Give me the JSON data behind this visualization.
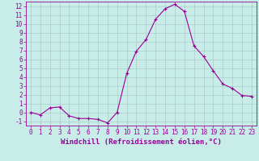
{
  "x": [
    0,
    1,
    2,
    3,
    4,
    5,
    6,
    7,
    8,
    9,
    10,
    11,
    12,
    13,
    14,
    15,
    16,
    17,
    18,
    19,
    20,
    21,
    22,
    23
  ],
  "y": [
    0.0,
    -0.3,
    0.5,
    0.6,
    -0.4,
    -0.7,
    -0.7,
    -0.8,
    -1.2,
    0.0,
    4.4,
    6.9,
    8.2,
    10.5,
    11.7,
    12.2,
    11.4,
    7.5,
    6.3,
    4.7,
    3.2,
    2.7,
    1.9,
    1.8
  ],
  "line_color": "#990099",
  "marker": "+",
  "marker_size": 3,
  "bg_color": "#c8ece8",
  "grid_color": "#aacccc",
  "xlabel": "Windchill (Refroidissement éolien,°C)",
  "ylim": [
    -1.5,
    12.5
  ],
  "xlim": [
    -0.5,
    23.5
  ],
  "yticks": [
    -1,
    0,
    1,
    2,
    3,
    4,
    5,
    6,
    7,
    8,
    9,
    10,
    11,
    12
  ],
  "xticks": [
    0,
    1,
    2,
    3,
    4,
    5,
    6,
    7,
    8,
    9,
    10,
    11,
    12,
    13,
    14,
    15,
    16,
    17,
    18,
    19,
    20,
    21,
    22,
    23
  ],
  "line_color_hex": "#990099",
  "tick_color": "#990099",
  "label_fontsize": 6.5,
  "tick_fontsize": 5.5,
  "linewidth": 0.8,
  "markeredgewidth": 0.8
}
